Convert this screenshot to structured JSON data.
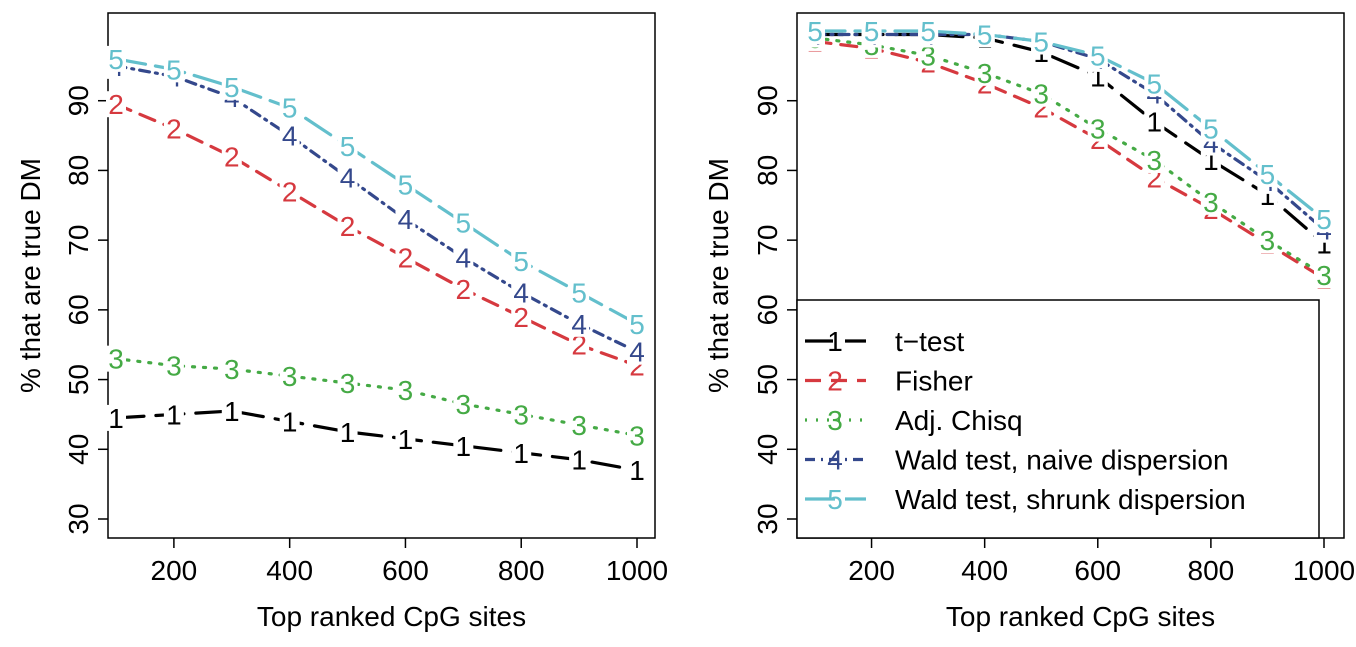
{
  "colors": {
    "1": "#000000",
    "2": "#d6393f",
    "3": "#45aa45",
    "4": "#34488c",
    "5": "#63bfcc"
  },
  "chart_data": [
    {
      "type": "line",
      "xlabel": "Top ranked CpG sites",
      "ylabel": "% that are true DM",
      "xlim": [
        100,
        1000
      ],
      "ylim": [
        30,
        95
      ],
      "xticks": [
        200,
        400,
        600,
        800,
        1000
      ],
      "yticks": [
        30,
        40,
        50,
        60,
        70,
        80,
        90
      ],
      "x": [
        100,
        200,
        300,
        400,
        500,
        600,
        700,
        800,
        900,
        1000
      ],
      "series": [
        {
          "marker": "1",
          "values": [
            44.5,
            45,
            45.5,
            44,
            42.5,
            41.5,
            40.5,
            39.5,
            38.5,
            37
          ]
        },
        {
          "marker": "2",
          "values": [
            89.5,
            86,
            82,
            77,
            72,
            67.5,
            63,
            59,
            55,
            52
          ]
        },
        {
          "marker": "3",
          "values": [
            53,
            52,
            51.5,
            50.5,
            49.5,
            48.5,
            46.5,
            45,
            43.5,
            42
          ]
        },
        {
          "marker": "4",
          "values": [
            95,
            93.5,
            90.5,
            85,
            79,
            73,
            67.5,
            62.5,
            58,
            54
          ]
        },
        {
          "marker": "5",
          "values": [
            96,
            94.5,
            92,
            89,
            83.5,
            78,
            72.5,
            67,
            62.5,
            58
          ]
        }
      ]
    },
    {
      "type": "line",
      "xlabel": "Top ranked CpG sites",
      "ylabel": "% that are true DM",
      "xlim": [
        100,
        1000
      ],
      "ylim": [
        30,
        95
      ],
      "xticks": [
        200,
        400,
        600,
        800,
        1000
      ],
      "yticks": [
        30,
        40,
        50,
        60,
        70,
        80,
        90
      ],
      "x": [
        100,
        200,
        300,
        400,
        500,
        600,
        700,
        800,
        900,
        1000
      ],
      "legend": {
        "position": "bottom-left",
        "entries": [
          {
            "marker": "1",
            "label": "t−test"
          },
          {
            "marker": "2",
            "label": "Fisher"
          },
          {
            "marker": "3",
            "label": "Adj. Chisq"
          },
          {
            "marker": "4",
            "label": "Wald test, naive dispersion"
          },
          {
            "marker": "5",
            "label": "Wald test, shrunk dispersion"
          }
        ]
      },
      "series": [
        {
          "name": "t−test",
          "marker": "1",
          "values": [
            99.5,
            99.5,
            99.5,
            99,
            97,
            93.5,
            87,
            81.5,
            76.5,
            69.5
          ]
        },
        {
          "name": "Fisher",
          "marker": "2",
          "values": [
            98.5,
            97.5,
            95.5,
            92.5,
            89,
            84.5,
            79,
            74.5,
            69.5,
            64.5
          ]
        },
        {
          "name": "Adj. Chisq",
          "marker": "3",
          "values": [
            99,
            98,
            96.5,
            94,
            91,
            86,
            81.5,
            75.5,
            70,
            65
          ]
        },
        {
          "name": "Wald test, naive dispersion",
          "marker": "4",
          "values": [
            99.5,
            99.5,
            99.5,
            99.5,
            98.5,
            96,
            91,
            84,
            78.5,
            71.5
          ]
        },
        {
          "name": "Wald test, shrunk dispersion",
          "marker": "5",
          "values": [
            100,
            100,
            100,
            99.5,
            98.5,
            96.5,
            92.5,
            86,
            79.5,
            73
          ]
        }
      ]
    }
  ]
}
